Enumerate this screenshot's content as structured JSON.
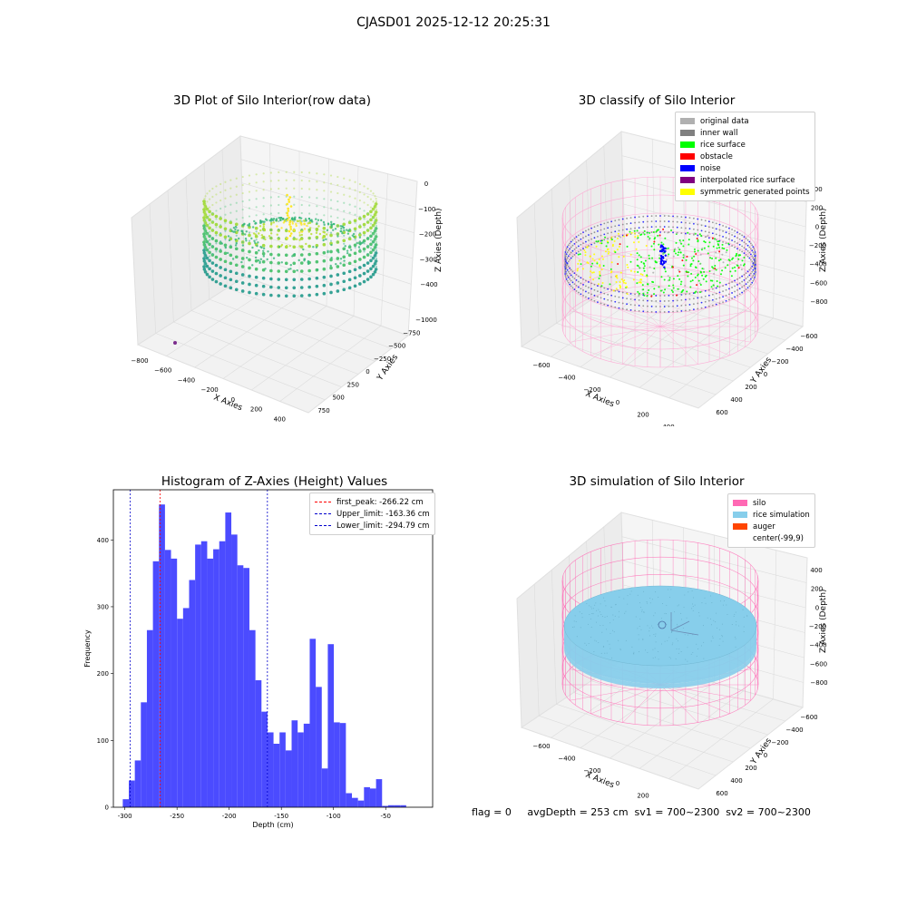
{
  "suptitle": "CJASD01 2025-12-12 20:25:31",
  "footer": "flag = 0     avgDepth = 253 cm  sv1 = 700~2300  sv2 = 700~2300",
  "colors": {
    "hist_bar": "#4b4bff",
    "first_peak": "#ff0000",
    "limit": "#0000cc",
    "silo": "#ff69b4",
    "rice_sim": "#87ceeb",
    "auger": "#ff4500"
  },
  "chart_data": [
    {
      "type": "scatter",
      "title": "3D Plot of Silo Interior(row data)",
      "xlabel": "X Axies",
      "ylabel": "Y Axies",
      "zlabel": "Z Axies (Depth)",
      "xticks": [
        "−800",
        "−600",
        "−400",
        "−200",
        "0",
        "200",
        "400",
        "600"
      ],
      "yticks": [
        "−1000",
        "−750",
        "−500",
        "−250",
        "0",
        "250",
        "500",
        "750"
      ],
      "zticks": [
        "0",
        "−100",
        "−200",
        "−300",
        "−400"
      ]
    },
    {
      "type": "scatter",
      "title": "3D classify of Silo Interior",
      "xlabel": "X Axies",
      "ylabel": "Y Axies",
      "zlabel": "Z Axies (Depth)",
      "xticks": [
        "−600",
        "−400",
        "−200",
        "0",
        "200",
        "400"
      ],
      "yticks": [
        "−600",
        "−400",
        "−200",
        "0",
        "200",
        "400",
        "600"
      ],
      "zticks": [
        "400",
        "200",
        "0",
        "−200",
        "−400",
        "−600",
        "−800"
      ],
      "legend": [
        {
          "label": "original data",
          "color": "#b0b0b0"
        },
        {
          "label": "inner wall",
          "color": "#808080"
        },
        {
          "label": "rice surface",
          "color": "#00ff00"
        },
        {
          "label": "obstacle",
          "color": "#ff0000"
        },
        {
          "label": "noise",
          "color": "#0000ff"
        },
        {
          "label": "interpolated rice surface",
          "color": "#800080"
        },
        {
          "label": "symmetric generated points",
          "color": "#ffff00"
        }
      ]
    },
    {
      "type": "bar",
      "title": "Histogram of Z-Axies (Height) Values",
      "xlabel": "Depth (cm)",
      "ylabel": "Frequency",
      "xlim": [
        -311,
        -5
      ],
      "ylim": [
        0,
        475
      ],
      "xticks": [
        -300,
        -250,
        -200,
        -150,
        -100,
        -50
      ],
      "yticks": [
        0,
        100,
        200,
        300,
        400
      ],
      "bin_start": -302,
      "bin_width": 5.78,
      "values": [
        12,
        40,
        70,
        157,
        265,
        368,
        453,
        385,
        372,
        282,
        298,
        340,
        393,
        398,
        372,
        386,
        398,
        441,
        408,
        362,
        358,
        265,
        190,
        143,
        112,
        95,
        112,
        85,
        130,
        112,
        125,
        252,
        180,
        58,
        244,
        127,
        126,
        21,
        14,
        10,
        30,
        28,
        42,
        2,
        3,
        3,
        3
      ],
      "vlines": [
        {
          "label": "first_peak: -266.22 cm",
          "x": -266.22,
          "color": "#ff0000"
        },
        {
          "label": "Upper_limit: -163.36 cm",
          "x": -163.36,
          "color": "#0000cc"
        },
        {
          "label": "Lower_limit: -294.79 cm",
          "x": -294.79,
          "color": "#0000cc"
        }
      ]
    },
    {
      "type": "scatter",
      "title": "3D simulation of Silo Interior",
      "xlabel": "X Axies",
      "ylabel": "Y Axies",
      "zlabel": "Z Axies (Depth)",
      "xticks": [
        "−600",
        "−400",
        "−200",
        "0",
        "200",
        "400"
      ],
      "yticks": [
        "−600",
        "−400",
        "−200",
        "0",
        "200",
        "400",
        "600"
      ],
      "zticks": [
        "400",
        "200",
        "0",
        "−200",
        "−400",
        "−600",
        "−800"
      ],
      "legend": [
        {
          "label": "silo",
          "color": "#ff69b4"
        },
        {
          "label": "rice simulation",
          "color": "#87ceeb"
        },
        {
          "label": "auger",
          "color": "#ff4500"
        },
        {
          "label": "center(-99,9)",
          "color": ""
        }
      ]
    }
  ]
}
